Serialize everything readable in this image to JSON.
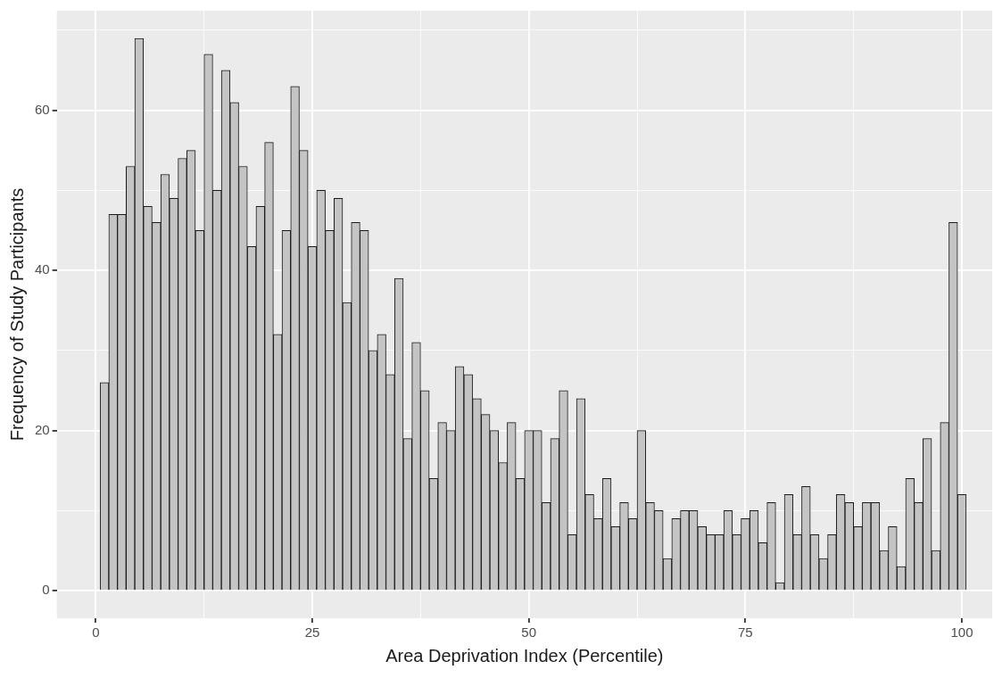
{
  "chart_data": {
    "type": "histogram",
    "xlabel": "Area Deprivation Index (Percentile)",
    "ylabel": "Frequency of Study Participants",
    "bins": [
      0.5,
      1.5,
      2.5,
      3.5,
      4.5,
      5.5,
      6.5,
      7.5,
      8.5,
      9.5,
      10.5,
      11.5,
      12.5,
      13.5,
      14.5,
      15.5,
      16.5,
      17.5,
      18.5,
      19.5,
      20.5,
      21.5,
      22.5,
      23.5,
      24.5,
      25.5,
      26.5,
      27.5,
      28.5,
      29.5,
      30.5,
      31.5,
      32.5,
      33.5,
      34.5,
      35.5,
      36.5,
      37.5,
      38.5,
      39.5,
      40.5,
      41.5,
      42.5,
      43.5,
      44.5,
      45.5,
      46.5,
      47.5,
      48.5,
      49.5,
      50.5,
      51.5,
      52.5,
      53.5,
      54.5,
      55.5,
      56.5,
      57.5,
      58.5,
      59.5,
      60.5,
      61.5,
      62.5,
      63.5,
      64.5,
      65.5,
      66.5,
      67.5,
      68.5,
      69.5,
      70.5,
      71.5,
      72.5,
      73.5,
      74.5,
      75.5,
      76.5,
      77.5,
      78.5,
      79.5,
      80.5,
      81.5,
      82.5,
      83.5,
      84.5,
      85.5,
      86.5,
      87.5,
      88.5,
      89.5,
      90.5,
      91.5,
      92.5,
      93.5,
      94.5,
      95.5,
      96.5,
      97.5,
      98.5,
      99.5,
      100.5
    ],
    "values": [
      26,
      47,
      47,
      53,
      69,
      48,
      46,
      52,
      49,
      54,
      55,
      45,
      67,
      50,
      65,
      61,
      53,
      43,
      48,
      56,
      32,
      45,
      63,
      55,
      43,
      50,
      45,
      49,
      36,
      46,
      45,
      30,
      32,
      27,
      39,
      19,
      31,
      25,
      14,
      21,
      20,
      28,
      27,
      24,
      22,
      20,
      16,
      21,
      14,
      20,
      20,
      11,
      19,
      25,
      7,
      24,
      12,
      9,
      14,
      8,
      11,
      9,
      20,
      11,
      10,
      4,
      9,
      10,
      10,
      8,
      7,
      7,
      10,
      7,
      9,
      10,
      6,
      11,
      1,
      12,
      7,
      13,
      7,
      4,
      7,
      12,
      11,
      8,
      11,
      11,
      5,
      8,
      3,
      14,
      11,
      19,
      5,
      21,
      46,
      12
    ],
    "color": "#c4c4c4",
    "xlim": [
      -4.5,
      103.5
    ],
    "xticks": [
      0,
      {
        "value": 12.5,
        "label": null
      },
      25,
      {
        "value": 37.5,
        "label": null
      },
      50,
      {
        "value": 62.5,
        "label": null
      },
      75,
      {
        "value": 87.5,
        "label": null
      },
      100
    ],
    "ylim": [
      -3.45,
      72.45
    ],
    "yticks": [
      0,
      {
        "value": 10,
        "label": null
      },
      20,
      {
        "value": 30,
        "label": null
      },
      40,
      {
        "value": 50,
        "label": null
      },
      60,
      {
        "value": 70,
        "label": null
      }
    ],
    "grid": true
  }
}
